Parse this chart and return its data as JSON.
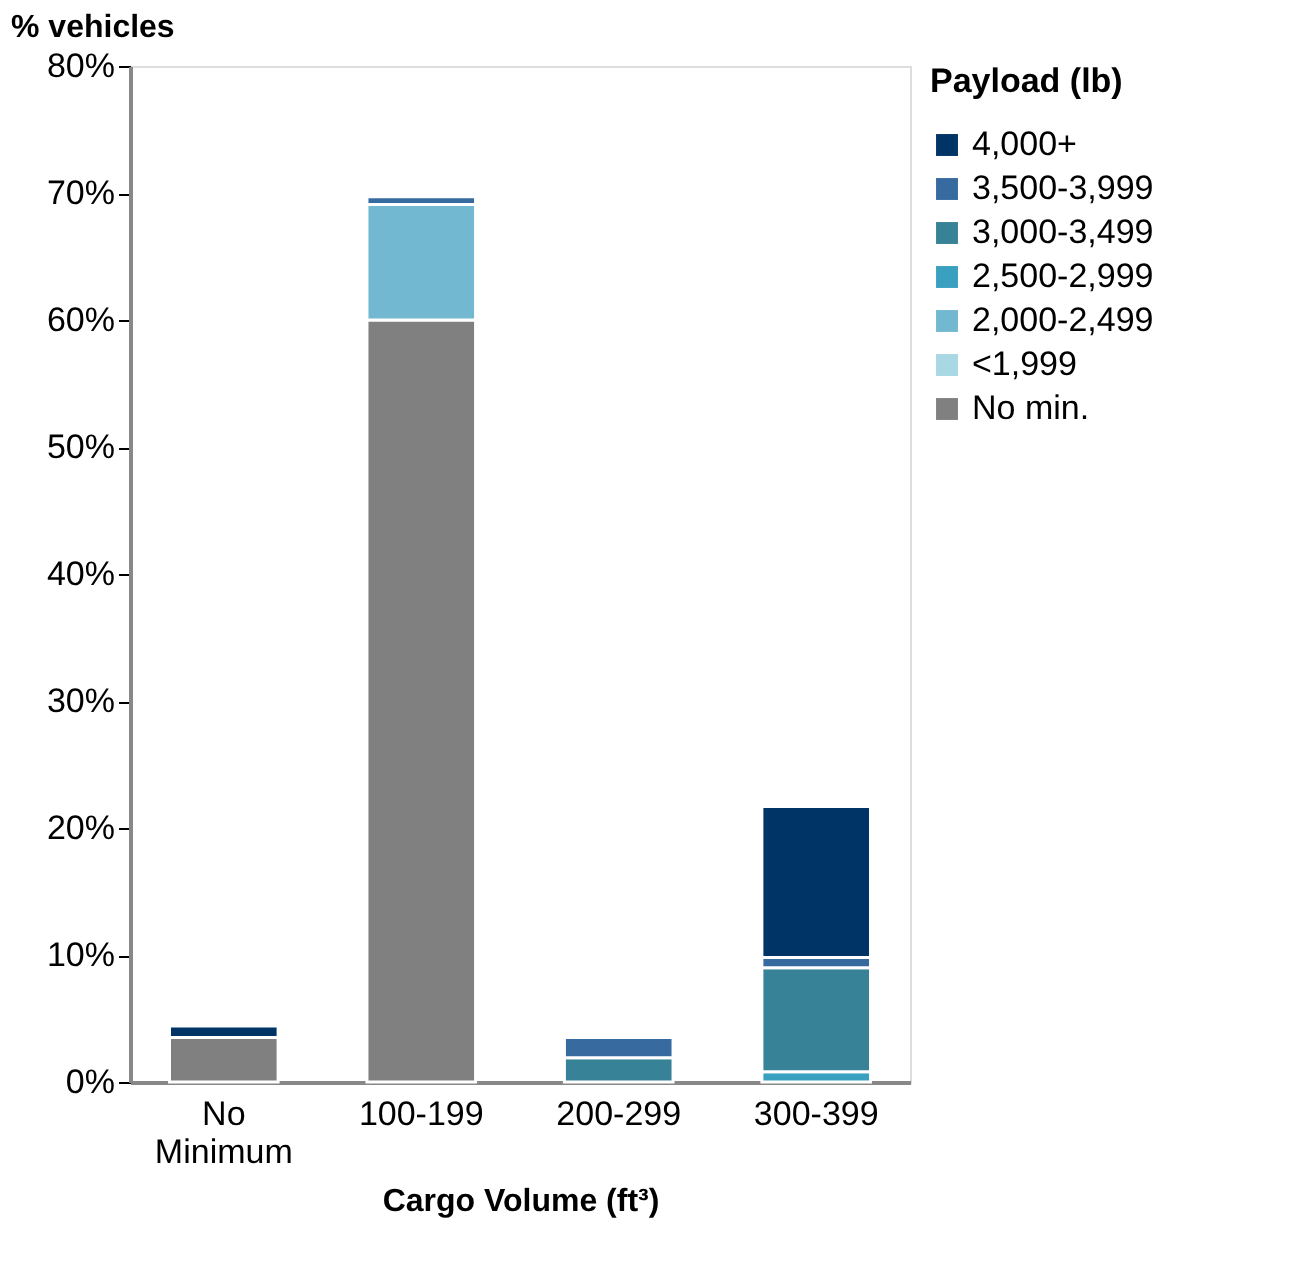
{
  "chart_data": {
    "type": "bar",
    "stacked": true,
    "xlabel": "Cargo Volume (ft³)",
    "ylabel": "% vehicles",
    "legend_title": "Payload (lb)",
    "legend": "right",
    "grid": false,
    "categories": [
      "No Minimum",
      "100-199",
      "200-299",
      "300-399"
    ],
    "ylim": [
      0,
      80
    ],
    "yticks": [
      {
        "value": 0,
        "label": "0%"
      },
      {
        "value": 10,
        "label": "10%"
      },
      {
        "value": 20,
        "label": "20%"
      },
      {
        "value": 30,
        "label": "30%"
      },
      {
        "value": 40,
        "label": "40%"
      },
      {
        "value": 50,
        "label": "50%"
      },
      {
        "value": 60,
        "label": "60%"
      },
      {
        "value": 70,
        "label": "70%"
      },
      {
        "value": 80,
        "label": "80%"
      }
    ],
    "series": [
      {
        "name": "No min.",
        "color": "#808080",
        "values": [
          3.5,
          60.0,
          null,
          null
        ]
      },
      {
        "name": "<1,999",
        "color": "#a8d8e4",
        "values": [
          null,
          null,
          null,
          null
        ]
      },
      {
        "name": "2,000-2,499",
        "color": "#72b8d0",
        "values": [
          null,
          9.1,
          null,
          null
        ]
      },
      {
        "name": "2,500-2,999",
        "color": "#3aa0c0",
        "values": [
          null,
          null,
          null,
          0.8
        ]
      },
      {
        "name": "3,000-3,499",
        "color": "#378296",
        "values": [
          null,
          null,
          1.9,
          8.2
        ]
      },
      {
        "name": "3,500-3,999",
        "color": "#376ba0",
        "values": [
          null,
          0.6,
          1.6,
          0.8
        ]
      },
      {
        "name": "4,000+",
        "color": "#003366",
        "values": [
          0.9,
          null,
          null,
          11.9
        ]
      }
    ]
  }
}
